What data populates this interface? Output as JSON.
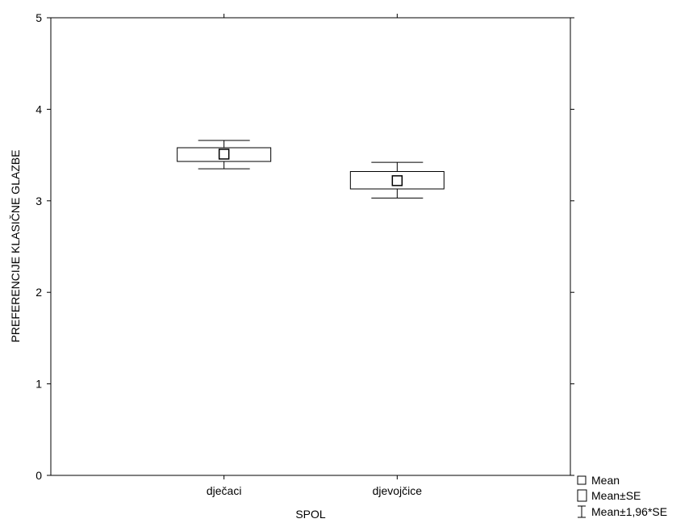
{
  "chart_data": {
    "type": "box",
    "xlabel": "SPOL",
    "ylabel": "PREFERENCIJE KLASIČNE GLAZBE",
    "ylim": [
      0,
      5
    ],
    "yticks": [
      "0",
      "1",
      "2",
      "3",
      "4",
      "5"
    ],
    "categories": [
      "dječaci",
      "djevojčice"
    ],
    "series": [
      {
        "category": "dječaci",
        "mean": 3.51,
        "se_low": 3.43,
        "se_high": 3.58,
        "ci_low": 3.35,
        "ci_high": 3.66
      },
      {
        "category": "djevojčice",
        "mean": 3.22,
        "se_low": 3.13,
        "se_high": 3.32,
        "ci_low": 3.03,
        "ci_high": 3.42
      }
    ],
    "legend": {
      "position": "bottom-right",
      "items": [
        {
          "symbol": "square",
          "label": "Mean"
        },
        {
          "symbol": "box",
          "label": "Mean±SE"
        },
        {
          "symbol": "whisker",
          "label": "Mean±1,96*SE"
        }
      ]
    },
    "grid": false
  }
}
